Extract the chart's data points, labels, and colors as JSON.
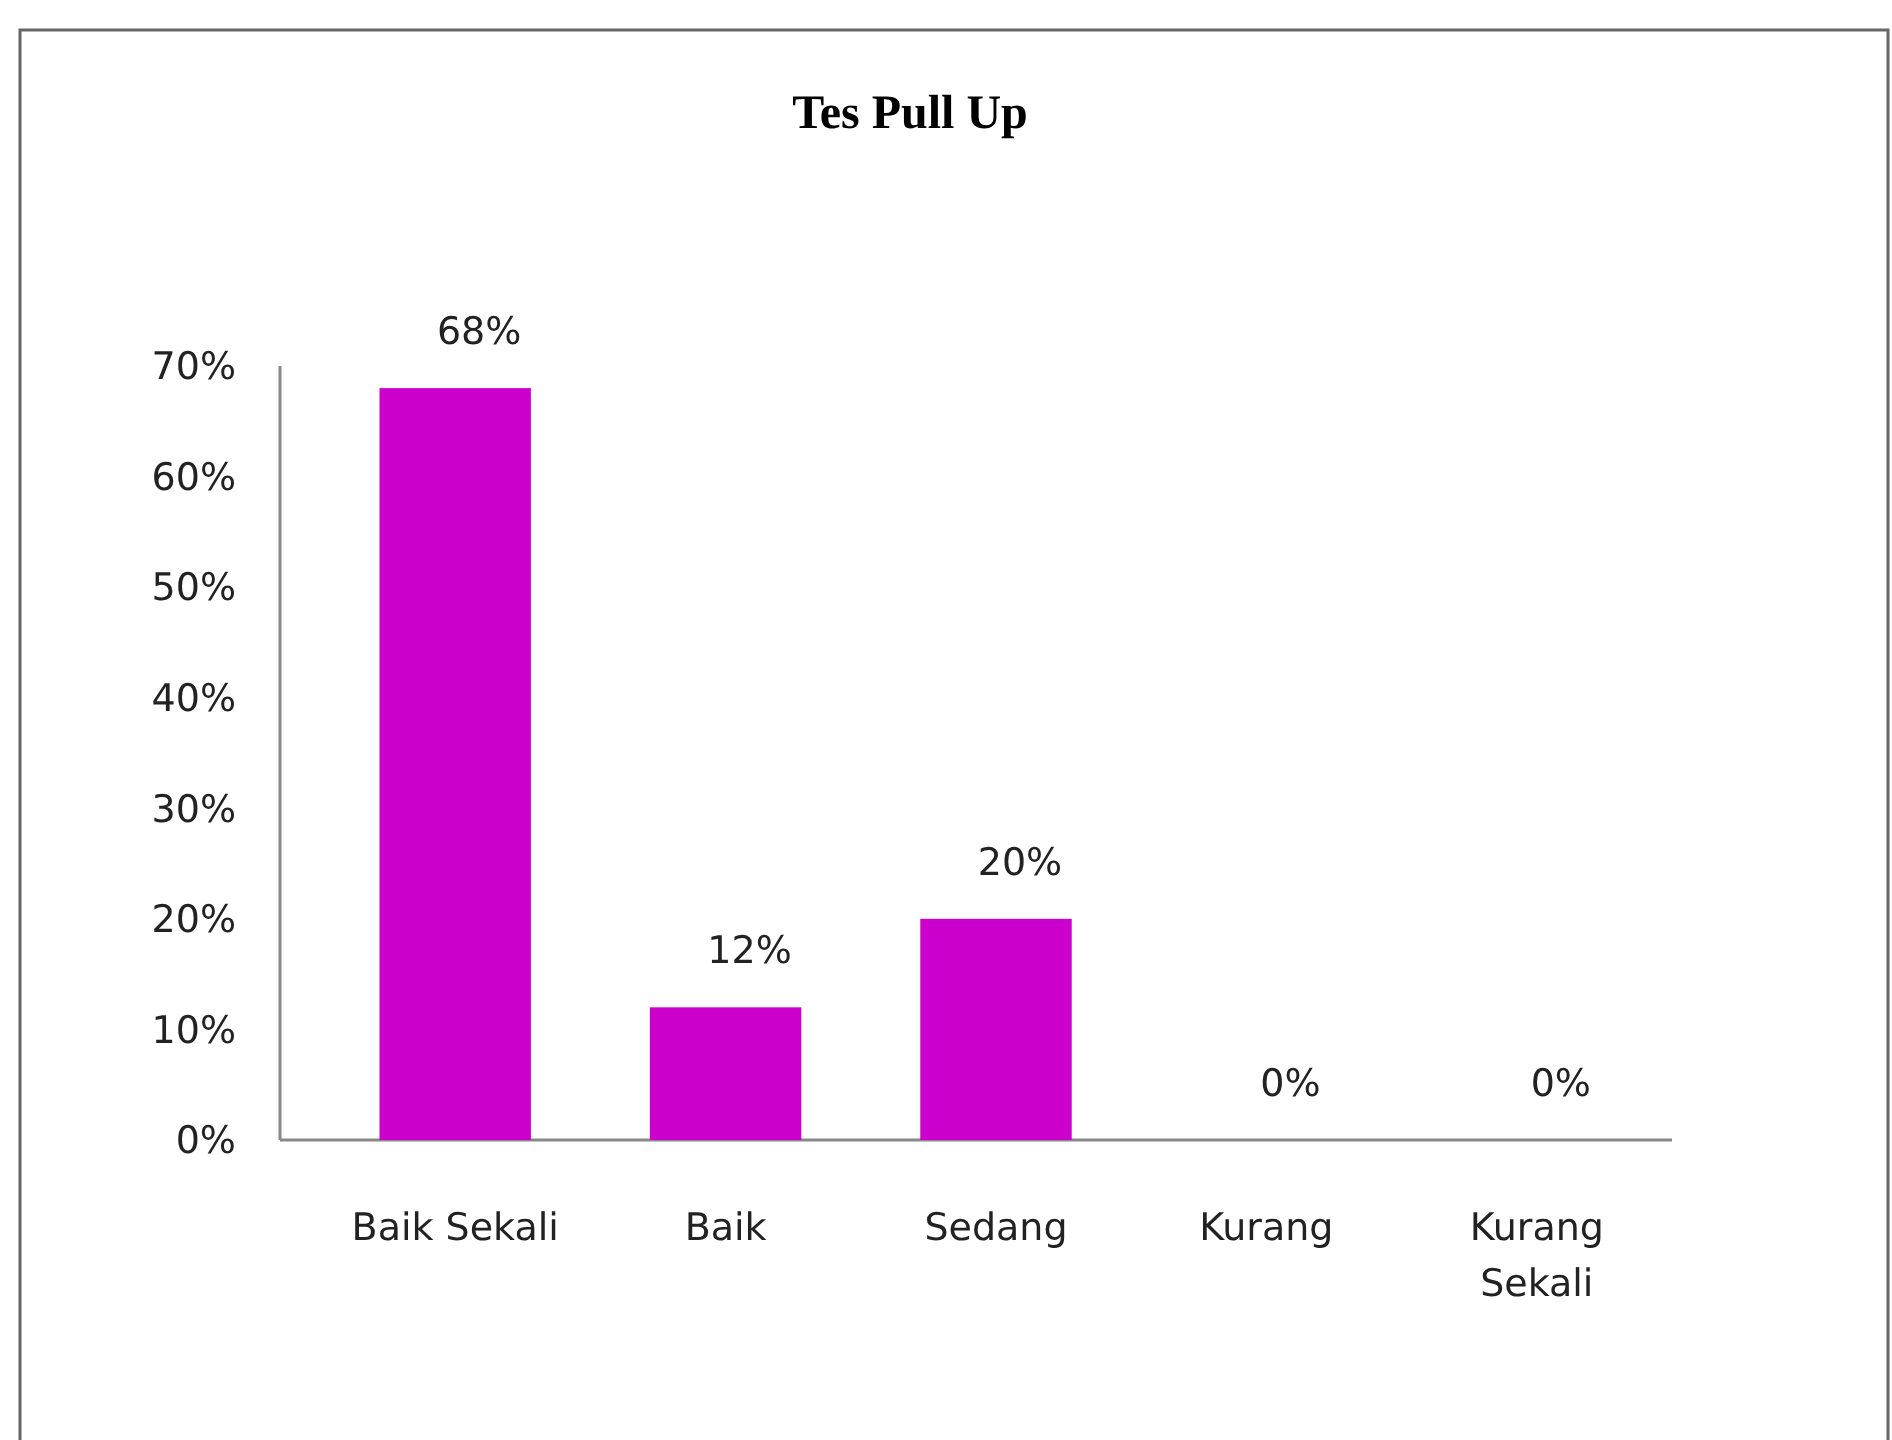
{
  "chart_data": {
    "type": "bar",
    "title": "Tes Pull Up",
    "categories": [
      "Baik Sekali",
      "Baik",
      "Sedang",
      "Kurang",
      "Kurang Sekali"
    ],
    "values": [
      68,
      12,
      20,
      0,
      0
    ],
    "value_labels": [
      "68%",
      "12%",
      "20%",
      "0%",
      "0%"
    ],
    "color": "#cc00cc",
    "ylim": [
      0,
      70
    ],
    "yticks": [
      {
        "value": 0,
        "label": "0%"
      },
      {
        "value": 10,
        "label": "10%"
      },
      {
        "value": 20,
        "label": "20%"
      },
      {
        "value": 30,
        "label": "30%"
      },
      {
        "value": 40,
        "label": "40%"
      },
      {
        "value": 50,
        "label": "50%"
      },
      {
        "value": 60,
        "label": "60%"
      },
      {
        "value": 70,
        "label": "70%"
      }
    ],
    "grid": false
  }
}
